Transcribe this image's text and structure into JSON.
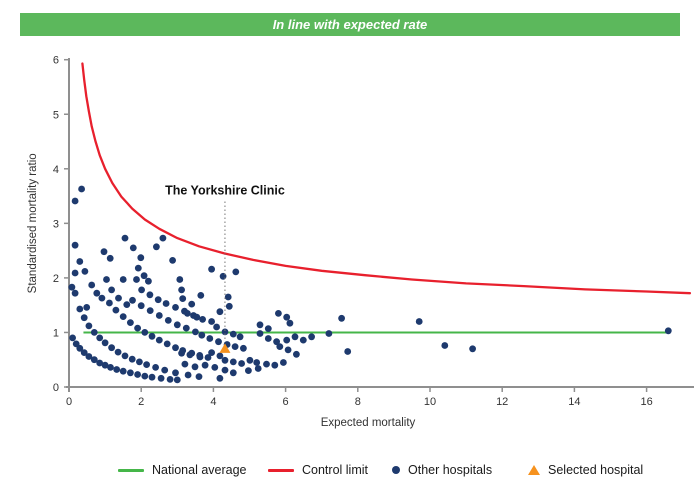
{
  "banner": {
    "text": "In line with expected rate",
    "bg_color": "#5cb85c",
    "text_color": "#ffffff"
  },
  "chart_data": {
    "type": "scatter",
    "title": "In line with expected rate",
    "xlabel": "Expected mortality",
    "ylabel": "Standardised mortality ratio",
    "xlim": [
      0,
      17.2
    ],
    "ylim": [
      0,
      6
    ],
    "xticks": [
      0,
      2,
      4,
      6,
      8,
      10,
      12,
      14,
      16
    ],
    "yticks": [
      0,
      1,
      2,
      3,
      4,
      5,
      6
    ],
    "grid": false,
    "legend_position": "bottom",
    "annotation": {
      "label": "The Yorkshire Clinic",
      "x": 4.32,
      "label_y": 3.6,
      "line_top_y": 3.4
    },
    "national_average": {
      "label": "National average",
      "y": 1,
      "x_start": 0.4,
      "x_end": 16.6,
      "color": "#45b649"
    },
    "control_limit": {
      "label": "Control limit",
      "color": "#e8202d",
      "points": [
        [
          0.37,
          5.93
        ],
        [
          0.42,
          5.63
        ],
        [
          0.48,
          5.33
        ],
        [
          0.55,
          5.05
        ],
        [
          0.63,
          4.78
        ],
        [
          0.73,
          4.51
        ],
        [
          0.85,
          4.25
        ],
        [
          1.0,
          4.0
        ],
        [
          1.2,
          3.74
        ],
        [
          1.45,
          3.49
        ],
        [
          1.75,
          3.27
        ],
        [
          2.1,
          3.07
        ],
        [
          2.5,
          2.9
        ],
        [
          3.0,
          2.73
        ],
        [
          3.6,
          2.58
        ],
        [
          4.3,
          2.45
        ],
        [
          5.1,
          2.33
        ],
        [
          6.0,
          2.22
        ],
        [
          7.0,
          2.13
        ],
        [
          8.2,
          2.05
        ],
        [
          9.5,
          1.97
        ],
        [
          11.0,
          1.9
        ],
        [
          12.6,
          1.85
        ],
        [
          14.3,
          1.79
        ],
        [
          16.0,
          1.75
        ],
        [
          17.2,
          1.72
        ]
      ]
    },
    "selected_hospital": {
      "label": "Selected hospital",
      "color": "#f6921e",
      "x": 4.32,
      "y": 0.7
    },
    "other_hospitals": {
      "label": "Other hospitals",
      "color": "#1e3a6e",
      "points": [
        [
          0.1,
          0.9
        ],
        [
          0.2,
          0.79
        ],
        [
          0.3,
          0.71
        ],
        [
          0.42,
          0.63
        ],
        [
          0.55,
          0.56
        ],
        [
          0.7,
          0.5
        ],
        [
          0.85,
          0.44
        ],
        [
          1.0,
          0.4
        ],
        [
          1.15,
          0.36
        ],
        [
          1.32,
          0.32
        ],
        [
          1.5,
          0.29
        ],
        [
          1.7,
          0.26
        ],
        [
          1.9,
          0.23
        ],
        [
          2.1,
          0.2
        ],
        [
          2.3,
          0.18
        ],
        [
          2.55,
          0.16
        ],
        [
          2.8,
          0.14
        ],
        [
          3.0,
          0.13
        ],
        [
          0.3,
          1.43
        ],
        [
          0.42,
          1.27
        ],
        [
          0.55,
          1.12
        ],
        [
          0.7,
          1.0
        ],
        [
          0.85,
          0.9
        ],
        [
          1.0,
          0.81
        ],
        [
          1.18,
          0.72
        ],
        [
          1.36,
          0.64
        ],
        [
          1.55,
          0.57
        ],
        [
          1.75,
          0.51
        ],
        [
          1.95,
          0.46
        ],
        [
          2.15,
          0.41
        ],
        [
          2.4,
          0.36
        ],
        [
          2.65,
          0.31
        ],
        [
          2.95,
          0.26
        ],
        [
          3.3,
          0.22
        ],
        [
          3.6,
          0.19
        ],
        [
          1.12,
          1.54
        ],
        [
          1.3,
          1.41
        ],
        [
          1.5,
          1.29
        ],
        [
          1.7,
          1.18
        ],
        [
          1.9,
          1.08
        ],
        [
          2.1,
          1.0
        ],
        [
          2.3,
          0.93
        ],
        [
          2.5,
          0.86
        ],
        [
          2.72,
          0.79
        ],
        [
          2.95,
          0.72
        ],
        [
          3.15,
          0.67
        ],
        [
          3.4,
          0.62
        ],
        [
          3.62,
          0.58
        ],
        [
          3.85,
          0.54
        ],
        [
          1.76,
          1.59
        ],
        [
          2.0,
          1.49
        ],
        [
          2.25,
          1.4
        ],
        [
          2.5,
          1.31
        ],
        [
          2.75,
          1.22
        ],
        [
          3.0,
          1.14
        ],
        [
          3.25,
          1.08
        ],
        [
          3.5,
          1.01
        ],
        [
          3.68,
          0.95
        ],
        [
          3.9,
          0.89
        ],
        [
          4.14,
          0.83
        ],
        [
          4.38,
          0.78
        ],
        [
          4.6,
          0.74
        ],
        [
          4.83,
          0.71
        ],
        [
          2.69,
          1.53
        ],
        [
          2.95,
          1.46
        ],
        [
          3.2,
          1.39
        ],
        [
          3.45,
          1.31
        ],
        [
          3.7,
          1.24
        ],
        [
          3.95,
          1.2
        ],
        [
          4.09,
          1.1
        ],
        [
          4.32,
          1.01
        ],
        [
          4.55,
          0.97
        ],
        [
          4.74,
          0.92
        ],
        [
          0.08,
          1.83
        ],
        [
          0.17,
          1.72
        ],
        [
          0.49,
          1.46
        ],
        [
          0.63,
          1.87
        ],
        [
          0.77,
          1.72
        ],
        [
          0.91,
          1.63
        ],
        [
          1.04,
          1.97
        ],
        [
          1.18,
          1.78
        ],
        [
          1.37,
          1.63
        ],
        [
          1.6,
          1.51
        ],
        [
          1.5,
          1.97
        ],
        [
          1.87,
          1.97
        ],
        [
          2.01,
          1.78
        ],
        [
          2.24,
          1.69
        ],
        [
          2.47,
          1.6
        ],
        [
          1.92,
          2.18
        ],
        [
          2.08,
          2.04
        ],
        [
          2.2,
          1.94
        ],
        [
          0.17,
          3.41
        ],
        [
          0.35,
          3.63
        ],
        [
          0.17,
          2.6
        ],
        [
          0.3,
          2.3
        ],
        [
          0.17,
          2.09
        ],
        [
          0.44,
          2.12
        ],
        [
          0.97,
          2.48
        ],
        [
          1.14,
          2.36
        ],
        [
          1.55,
          2.73
        ],
        [
          1.78,
          2.55
        ],
        [
          1.99,
          2.37
        ],
        [
          2.42,
          2.57
        ],
        [
          2.6,
          2.73
        ],
        [
          2.87,
          2.32
        ],
        [
          3.07,
          1.97
        ],
        [
          3.12,
          1.78
        ],
        [
          3.15,
          1.62
        ],
        [
          3.28,
          1.35
        ],
        [
          3.4,
          1.52
        ],
        [
          3.54,
          1.28
        ],
        [
          3.65,
          1.68
        ],
        [
          3.95,
          2.16
        ],
        [
          4.27,
          2.03
        ],
        [
          4.62,
          2.11
        ],
        [
          4.41,
          1.65
        ],
        [
          4.44,
          1.48
        ],
        [
          4.18,
          1.38
        ],
        [
          5.29,
          1.14
        ],
        [
          5.52,
          1.07
        ],
        [
          5.29,
          0.98
        ],
        [
          5.52,
          0.89
        ],
        [
          5.75,
          0.83
        ],
        [
          5.8,
          1.35
        ],
        [
          6.03,
          1.28
        ],
        [
          6.12,
          1.17
        ],
        [
          6.26,
          0.92
        ],
        [
          6.03,
          0.86
        ],
        [
          5.84,
          0.74
        ],
        [
          6.07,
          0.68
        ],
        [
          6.3,
          0.6
        ],
        [
          6.49,
          0.86
        ],
        [
          6.72,
          0.92
        ],
        [
          7.2,
          0.98
        ],
        [
          3.12,
          0.62
        ],
        [
          3.35,
          0.59
        ],
        [
          3.63,
          0.55
        ],
        [
          3.95,
          0.63
        ],
        [
          4.18,
          0.57
        ],
        [
          3.21,
          0.42
        ],
        [
          3.49,
          0.37
        ],
        [
          3.77,
          0.4
        ],
        [
          4.04,
          0.36
        ],
        [
          4.32,
          0.49
        ],
        [
          4.55,
          0.46
        ],
        [
          4.78,
          0.43
        ],
        [
          5.01,
          0.49
        ],
        [
          5.2,
          0.45
        ],
        [
          4.32,
          0.31
        ],
        [
          4.55,
          0.26
        ],
        [
          4.18,
          0.16
        ],
        [
          4.97,
          0.3
        ],
        [
          5.24,
          0.34
        ],
        [
          5.47,
          0.42
        ],
        [
          5.7,
          0.4
        ],
        [
          5.94,
          0.45
        ],
        [
          7.55,
          1.26
        ],
        [
          7.72,
          0.65
        ],
        [
          9.7,
          1.2
        ],
        [
          10.41,
          0.76
        ],
        [
          11.18,
          0.7
        ],
        [
          16.6,
          1.03
        ]
      ]
    },
    "axis_color": "#8f8f8f",
    "tick_label_color": "#333333"
  },
  "legend": {
    "national_average": "National average",
    "control_limit": "Control limit",
    "other_hospitals": "Other hospitals",
    "selected_hospital": "Selected hospital"
  }
}
